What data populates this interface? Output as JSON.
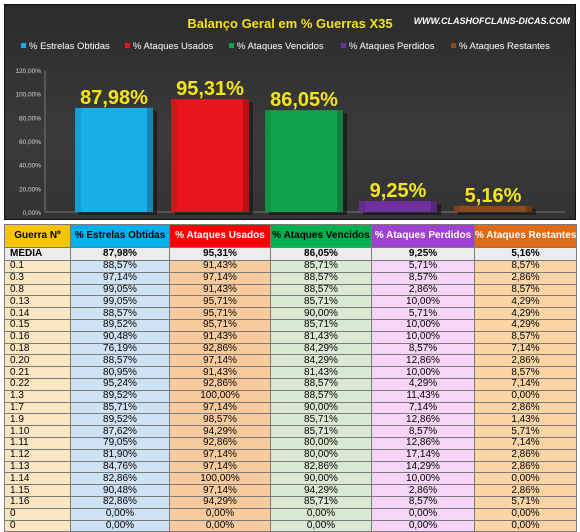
{
  "colors": {
    "estrelas": "#19aee6",
    "usados": "#e8161c",
    "vencidos": "#13a34e",
    "perdidos": "#7030a0",
    "restantes": "#8a4a1c",
    "title": "#f5e01a",
    "label": "#f5e41c",
    "h0": "#f7c500",
    "h1": "#00b0f0",
    "h2": "#ff0000",
    "h3": "#00b050",
    "h4": "#a040d0",
    "h5": "#e06a14"
  },
  "watermark": "WWW.CLASHOFCLANS-DICAS.COM",
  "chart_data": {
    "type": "bar",
    "title": "Balanço Geral em % Guerras X35",
    "categories": [
      "% Estrelas Obtidas",
      "% Ataques Usados",
      "% Ataques Vencidos",
      "% Ataques Perdidos",
      "% Ataques Restantes"
    ],
    "values": [
      87.98,
      95.31,
      86.05,
      9.25,
      5.16
    ],
    "value_labels": [
      "87,98%",
      "95,31%",
      "86,05%",
      "9,25%",
      "5,16%"
    ],
    "yticks": [
      "0,00%",
      "20,00%",
      "40,00%",
      "60,00%",
      "80,00%",
      "100,00%",
      "120,00%"
    ],
    "ylim": [
      0,
      120
    ],
    "legend": "top",
    "grid": false
  },
  "table": {
    "headers": [
      "Guerra Nº",
      "% Estrelas Obtidas",
      "% Ataques Usados",
      "% Ataques Vencidos",
      "% Ataques Perdidos",
      "% Ataques Restantes"
    ],
    "media": [
      "MÉDIA",
      "87,98%",
      "95,31%",
      "86,05%",
      "9,25%",
      "5,16%"
    ],
    "rows": [
      [
        "0.1",
        "88,57%",
        "91,43%",
        "85,71%",
        "5,71%",
        "8,57%"
      ],
      [
        "0.3",
        "97,14%",
        "97,14%",
        "88,57%",
        "8,57%",
        "2,86%"
      ],
      [
        "0.8",
        "99,05%",
        "91,43%",
        "88,57%",
        "2,86%",
        "8,57%"
      ],
      [
        "0.13",
        "99,05%",
        "95,71%",
        "85,71%",
        "10,00%",
        "4,29%"
      ],
      [
        "0.14",
        "88,57%",
        "95,71%",
        "90,00%",
        "5,71%",
        "4,29%"
      ],
      [
        "0.15",
        "89,52%",
        "95,71%",
        "85,71%",
        "10,00%",
        "4,29%"
      ],
      [
        "0.16",
        "90,48%",
        "91,43%",
        "81,43%",
        "10,00%",
        "8,57%"
      ],
      [
        "0.18",
        "76,19%",
        "92,86%",
        "84,29%",
        "8,57%",
        "7,14%"
      ],
      [
        "0.20",
        "88,57%",
        "97,14%",
        "84,29%",
        "12,86%",
        "2,86%"
      ],
      [
        "0.21",
        "80,95%",
        "91,43%",
        "81,43%",
        "10,00%",
        "8,57%"
      ],
      [
        "0.22",
        "95,24%",
        "92,86%",
        "88,57%",
        "4,29%",
        "7,14%"
      ],
      [
        "1.3",
        "89,52%",
        "100,00%",
        "88,57%",
        "11,43%",
        "0,00%"
      ],
      [
        "1.7",
        "85,71%",
        "97,14%",
        "90,00%",
        "7,14%",
        "2,86%"
      ],
      [
        "1.9",
        "89,52%",
        "98,57%",
        "85,71%",
        "12,86%",
        "1,43%"
      ],
      [
        "1.10",
        "87,62%",
        "94,29%",
        "85,71%",
        "8,57%",
        "5,71%"
      ],
      [
        "1.11",
        "79,05%",
        "92,86%",
        "80,00%",
        "12,86%",
        "7,14%"
      ],
      [
        "1.12",
        "81,90%",
        "97,14%",
        "80,00%",
        "17,14%",
        "2,86%"
      ],
      [
        "1.13",
        "84,76%",
        "97,14%",
        "82,86%",
        "14,29%",
        "2,86%"
      ],
      [
        "1.14",
        "82,86%",
        "100,00%",
        "90,00%",
        "10,00%",
        "0,00%"
      ],
      [
        "1.15",
        "90,48%",
        "97,14%",
        "94,29%",
        "2,86%",
        "2,86%"
      ],
      [
        "1.16",
        "82,86%",
        "94,29%",
        "85,71%",
        "8,57%",
        "5,71%"
      ],
      [
        "0",
        "0,00%",
        "0,00%",
        "0,00%",
        "0,00%",
        "0,00%"
      ],
      [
        "0",
        "0,00%",
        "0,00%",
        "0,00%",
        "0,00%",
        "0,00%"
      ]
    ]
  }
}
